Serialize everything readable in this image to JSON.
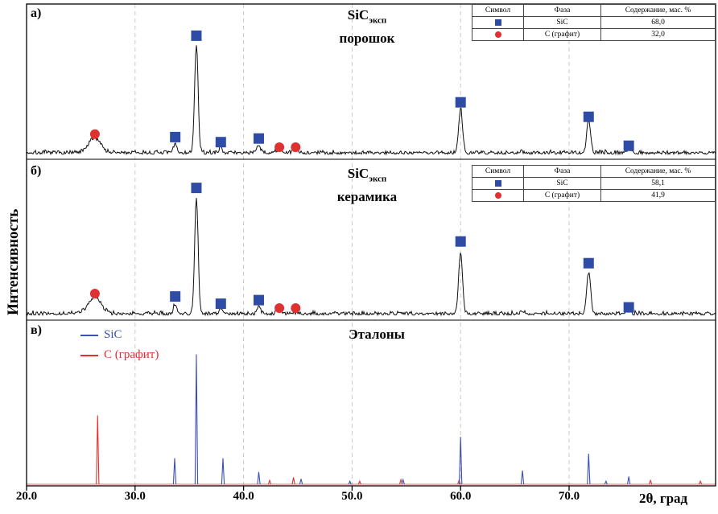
{
  "figure": {
    "y_axis_label": "Интенсивность",
    "x_axis_label": "2θ, град"
  },
  "panels": {
    "a": {
      "letter": "а)",
      "title_formula": "SiC",
      "title_subscript": "эксп",
      "title_line2": "порошок"
    },
    "b": {
      "letter": "б)",
      "title_formula": "SiC",
      "title_subscript": "эксп",
      "title_line2": "керамика"
    },
    "v": {
      "letter": "в)",
      "title": "Эталоны",
      "legend": [
        {
          "label": "SiC",
          "color": "#3c50b4"
        },
        {
          "label": "С (графит)",
          "color": "#e03030"
        }
      ]
    }
  },
  "tables": {
    "headers": [
      "Символ",
      "Фаза",
      "Содержание, мас. %"
    ],
    "a": {
      "rows": [
        {
          "symbol": "blue-square",
          "phase": "SiC",
          "content": "68,0"
        },
        {
          "symbol": "red-circle",
          "phase": "С (графит)",
          "content": "32,0"
        }
      ]
    },
    "b": {
      "rows": [
        {
          "symbol": "blue-square",
          "phase": "SiC",
          "content": "58,1"
        },
        {
          "symbol": "red-circle",
          "phase": "С (графит)",
          "content": "41,9"
        }
      ]
    }
  },
  "colors": {
    "sic_marker": "#2e4ca6",
    "graphite_marker": "#e03030",
    "sic_reference": "#3c50b4",
    "graphite_reference": "#e03030",
    "pattern": "#111111",
    "grid": "#c9c9c9"
  },
  "chart_data": {
    "type": "line",
    "title": "XRD patterns of SiC powder, SiC ceramic and reference standards",
    "xlabel": "2θ, град",
    "ylabel": "Интенсивность",
    "x_range": [
      20,
      83.5
    ],
    "grid": "vertical-dashed",
    "x_ticks": [
      {
        "value": 20,
        "label": "20.0"
      },
      {
        "value": 30,
        "label": "30.0"
      },
      {
        "value": 40,
        "label": "40.0"
      },
      {
        "value": 50,
        "label": "50.0"
      },
      {
        "value": 60,
        "label": "60.0"
      },
      {
        "value": 70,
        "label": "70.0"
      }
    ],
    "panels": [
      {
        "id": "a",
        "name": "SiC эксп порошок",
        "kind": "measured",
        "phase_content": {
          "SiC": 68.0,
          "C_graphite": 32.0
        },
        "peaks": [
          {
            "two_theta": 26.3,
            "height": 0.105,
            "width": 0.55,
            "phase": "C"
          },
          {
            "two_theta": 33.7,
            "height": 0.065,
            "width": 0.15,
            "phase": "SiC"
          },
          {
            "two_theta": 35.65,
            "height": 0.75,
            "width": 0.16,
            "phase": "SiC"
          },
          {
            "two_theta": 37.9,
            "height": 0.035,
            "width": 0.18,
            "phase": "SiC"
          },
          {
            "two_theta": 41.4,
            "height": 0.05,
            "width": 0.16,
            "phase": "SiC"
          },
          {
            "two_theta": 43.3,
            "height": 0.02,
            "width": 0.25,
            "phase": "C"
          },
          {
            "two_theta": 44.8,
            "height": 0.016,
            "width": 0.25,
            "phase": "C"
          },
          {
            "two_theta": 60.0,
            "height": 0.31,
            "width": 0.18,
            "phase": "SiC"
          },
          {
            "two_theta": 65.7,
            "height": 0.015,
            "width": 0.2,
            "phase": "SiC"
          },
          {
            "two_theta": 71.8,
            "height": 0.22,
            "width": 0.18,
            "phase": "SiC"
          },
          {
            "two_theta": 75.5,
            "height": 0.035,
            "width": 0.2,
            "phase": "SiC"
          }
        ],
        "markers_sic": [
          {
            "two_theta": 33.7,
            "y": 0.12
          },
          {
            "two_theta": 35.65,
            "y": 0.82
          },
          {
            "two_theta": 37.9,
            "y": 0.085
          },
          {
            "two_theta": 41.4,
            "y": 0.11
          },
          {
            "two_theta": 60.0,
            "y": 0.36
          },
          {
            "two_theta": 71.8,
            "y": 0.26
          },
          {
            "two_theta": 75.5,
            "y": 0.06
          }
        ],
        "markers_graphite": [
          {
            "two_theta": 26.3,
            "y": 0.14
          },
          {
            "two_theta": 43.3,
            "y": 0.05
          },
          {
            "two_theta": 44.8,
            "y": 0.05
          }
        ]
      },
      {
        "id": "b",
        "name": "SiC эксп керамика",
        "kind": "measured",
        "phase_content": {
          "SiC": 58.1,
          "C_graphite": 41.9
        },
        "peaks": [
          {
            "two_theta": 26.3,
            "height": 0.115,
            "width": 0.6,
            "phase": "C"
          },
          {
            "two_theta": 33.7,
            "height": 0.07,
            "width": 0.15,
            "phase": "SiC"
          },
          {
            "two_theta": 35.65,
            "height": 0.8,
            "width": 0.16,
            "phase": "SiC"
          },
          {
            "two_theta": 37.9,
            "height": 0.035,
            "width": 0.18,
            "phase": "SiC"
          },
          {
            "two_theta": 41.4,
            "height": 0.05,
            "width": 0.16,
            "phase": "SiC"
          },
          {
            "two_theta": 43.3,
            "height": 0.022,
            "width": 0.25,
            "phase": "C"
          },
          {
            "two_theta": 44.8,
            "height": 0.016,
            "width": 0.25,
            "phase": "C"
          },
          {
            "two_theta": 60.0,
            "height": 0.42,
            "width": 0.18,
            "phase": "SiC"
          },
          {
            "two_theta": 65.7,
            "height": 0.015,
            "width": 0.2,
            "phase": "SiC"
          },
          {
            "two_theta": 71.8,
            "height": 0.29,
            "width": 0.18,
            "phase": "SiC"
          },
          {
            "two_theta": 75.5,
            "height": 0.04,
            "width": 0.2,
            "phase": "SiC"
          }
        ],
        "markers_sic": [
          {
            "two_theta": 33.7,
            "y": 0.13
          },
          {
            "two_theta": 35.65,
            "y": 0.88
          },
          {
            "two_theta": 37.9,
            "y": 0.08
          },
          {
            "two_theta": 41.4,
            "y": 0.105
          },
          {
            "two_theta": 60.0,
            "y": 0.51
          },
          {
            "two_theta": 71.8,
            "y": 0.36
          },
          {
            "two_theta": 75.5,
            "y": 0.055
          }
        ],
        "markers_graphite": [
          {
            "two_theta": 26.3,
            "y": 0.15
          },
          {
            "two_theta": 43.3,
            "y": 0.05
          },
          {
            "two_theta": 44.8,
            "y": 0.05
          }
        ]
      },
      {
        "id": "v",
        "name": "Эталоны",
        "kind": "reference",
        "sic_sticks": [
          {
            "two_theta": 33.65,
            "height": 0.17
          },
          {
            "two_theta": 35.65,
            "height": 0.85
          },
          {
            "two_theta": 38.1,
            "height": 0.17
          },
          {
            "two_theta": 41.4,
            "height": 0.08
          },
          {
            "two_theta": 45.3,
            "height": 0.035
          },
          {
            "two_theta": 49.8,
            "height": 0.02
          },
          {
            "two_theta": 54.7,
            "height": 0.03
          },
          {
            "two_theta": 60.0,
            "height": 0.31
          },
          {
            "two_theta": 65.7,
            "height": 0.09
          },
          {
            "two_theta": 71.8,
            "height": 0.2
          },
          {
            "two_theta": 73.4,
            "height": 0.02
          },
          {
            "two_theta": 75.5,
            "height": 0.05
          }
        ],
        "graphite_sticks": [
          {
            "two_theta": 26.55,
            "height": 0.45
          },
          {
            "two_theta": 42.4,
            "height": 0.025
          },
          {
            "two_theta": 44.6,
            "height": 0.045
          },
          {
            "two_theta": 50.7,
            "height": 0.02
          },
          {
            "two_theta": 54.5,
            "height": 0.03
          },
          {
            "two_theta": 59.85,
            "height": 0.025
          },
          {
            "two_theta": 77.5,
            "height": 0.025
          },
          {
            "two_theta": 82.1,
            "height": 0.02
          }
        ]
      }
    ]
  }
}
